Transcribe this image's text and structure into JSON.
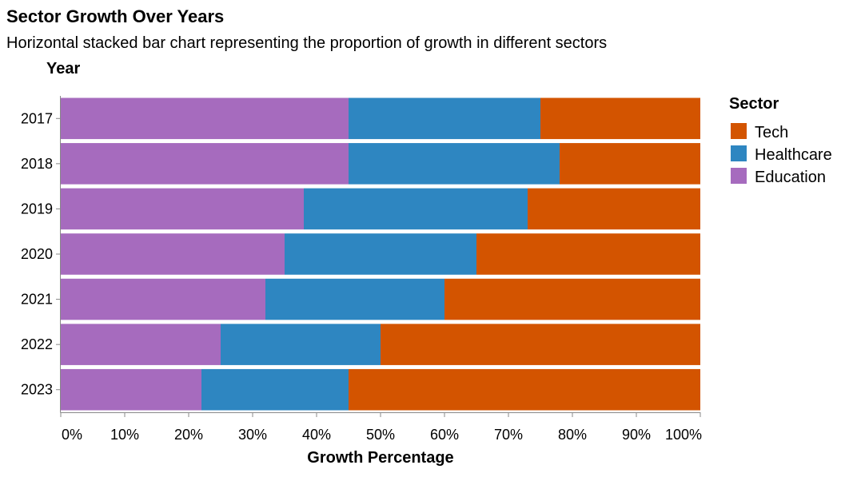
{
  "chart_data": {
    "type": "bar",
    "orientation": "horizontal",
    "stacked": true,
    "normalized": true,
    "title": "Sector Growth Over Years",
    "subtitle": "Horizontal stacked bar chart representing the proportion of growth in different sectors",
    "xlabel": "Growth Percentage",
    "ylabel": "Year",
    "xlim": [
      0,
      100
    ],
    "x_ticks": [
      "0%",
      "10%",
      "20%",
      "30%",
      "40%",
      "50%",
      "60%",
      "70%",
      "80%",
      "90%",
      "100%"
    ],
    "categories": [
      "2017",
      "2018",
      "2019",
      "2020",
      "2021",
      "2022",
      "2023"
    ],
    "legend": {
      "title": "Sector",
      "position": "right",
      "entries": [
        "Tech",
        "Healthcare",
        "Education"
      ]
    },
    "stack_order": [
      "Education",
      "Healthcare",
      "Tech"
    ],
    "series": [
      {
        "name": "Education",
        "color": "#a66bbe",
        "values": [
          45,
          45,
          38,
          35,
          32,
          25,
          22
        ]
      },
      {
        "name": "Healthcare",
        "color": "#2e86c1",
        "values": [
          30,
          33,
          35,
          30,
          28,
          25,
          23
        ]
      },
      {
        "name": "Tech",
        "color": "#d35400",
        "values": [
          25,
          22,
          27,
          35,
          40,
          50,
          55
        ]
      }
    ],
    "grid": false
  }
}
